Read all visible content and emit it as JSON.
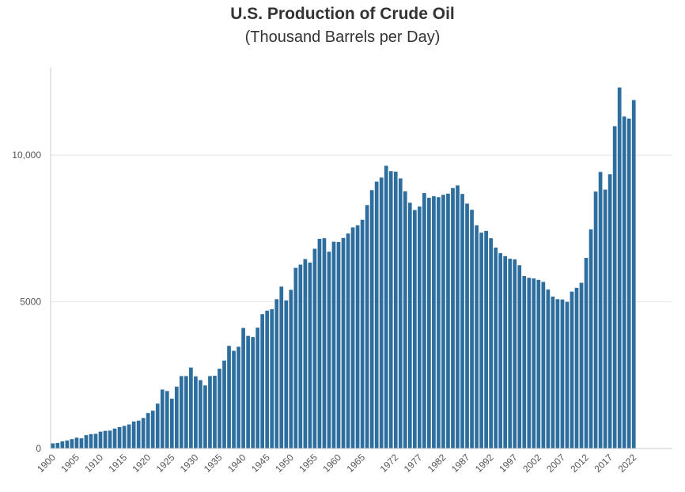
{
  "chart_data": {
    "type": "bar",
    "title": "U.S. Production of Crude Oil",
    "subtitle": "(Thousand Barrels per Day)",
    "xlabel": "",
    "ylabel": "",
    "x_start": 1900,
    "x": [
      1900,
      1901,
      1902,
      1903,
      1904,
      1905,
      1906,
      1907,
      1908,
      1909,
      1910,
      1911,
      1912,
      1913,
      1914,
      1915,
      1916,
      1917,
      1918,
      1919,
      1920,
      1921,
      1922,
      1923,
      1924,
      1925,
      1926,
      1927,
      1928,
      1929,
      1930,
      1931,
      1932,
      1933,
      1934,
      1935,
      1936,
      1937,
      1938,
      1939,
      1940,
      1941,
      1942,
      1943,
      1944,
      1945,
      1946,
      1947,
      1948,
      1949,
      1950,
      1951,
      1952,
      1953,
      1954,
      1955,
      1956,
      1957,
      1958,
      1959,
      1960,
      1961,
      1962,
      1963,
      1964,
      1965,
      1966,
      1967,
      1968,
      1969,
      1970,
      1971,
      1972,
      1973,
      1974,
      1975,
      1976,
      1977,
      1978,
      1979,
      1980,
      1981,
      1982,
      1983,
      1984,
      1985,
      1986,
      1987,
      1988,
      1989,
      1990,
      1991,
      1992,
      1993,
      1994,
      1995,
      1996,
      1997,
      1998,
      1999,
      2000,
      2001,
      2002,
      2003,
      2004,
      2005,
      2006,
      2007,
      2008,
      2009,
      2010,
      2011,
      2012,
      2013,
      2014,
      2015,
      2016,
      2017,
      2018,
      2019,
      2020,
      2021,
      2022
    ],
    "values": [
      174,
      190,
      243,
      275,
      320,
      370,
      346,
      455,
      490,
      500,
      575,
      602,
      611,
      680,
      730,
      770,
      820,
      920,
      950,
      1040,
      1210,
      1290,
      1530,
      2010,
      1960,
      1700,
      2110,
      2470,
      2470,
      2760,
      2460,
      2330,
      2150,
      2470,
      2480,
      2720,
      3000,
      3500,
      3330,
      3470,
      4110,
      3840,
      3800,
      4120,
      4580,
      4700,
      4750,
      5090,
      5520,
      5050,
      5410,
      6160,
      6270,
      6460,
      6340,
      6810,
      7150,
      7170,
      6710,
      7050,
      7040,
      7180,
      7330,
      7540,
      7610,
      7800,
      8300,
      8810,
      9100,
      9240,
      9640,
      9460,
      9440,
      9210,
      8770,
      8380,
      8130,
      8250,
      8710,
      8550,
      8600,
      8570,
      8650,
      8690,
      8880,
      8970,
      8680,
      8350,
      8140,
      7610,
      7360,
      7420,
      7170,
      6850,
      6660,
      6560,
      6470,
      6450,
      6250,
      5880,
      5820,
      5800,
      5750,
      5680,
      5420,
      5180,
      5090,
      5080,
      5000,
      5350,
      5480,
      5650,
      6500,
      7470,
      8760,
      9430,
      8830,
      9350,
      10990,
      12310,
      11320,
      11250,
      11880
    ],
    "tick_labels": [
      "1900",
      "1905",
      "1910",
      "1915",
      "1920",
      "1925",
      "1930",
      "1935",
      "1940",
      "1945",
      "1950",
      "1955",
      "1960",
      "1965",
      "1972",
      "1977",
      "1982",
      "1987",
      "1992",
      "1997",
      "2002",
      "2007",
      "2012",
      "2017",
      "2022"
    ],
    "y_tick_labels": [
      "0",
      "5000",
      "10,000"
    ],
    "y_ticks": [
      0,
      5000,
      10000
    ],
    "ylim": [
      0,
      13000
    ],
    "grid": true,
    "bar_color": "#2e6e9e",
    "grid_color": "#e6e6e6",
    "axis_color": "#cccccc",
    "legend": "none"
  }
}
